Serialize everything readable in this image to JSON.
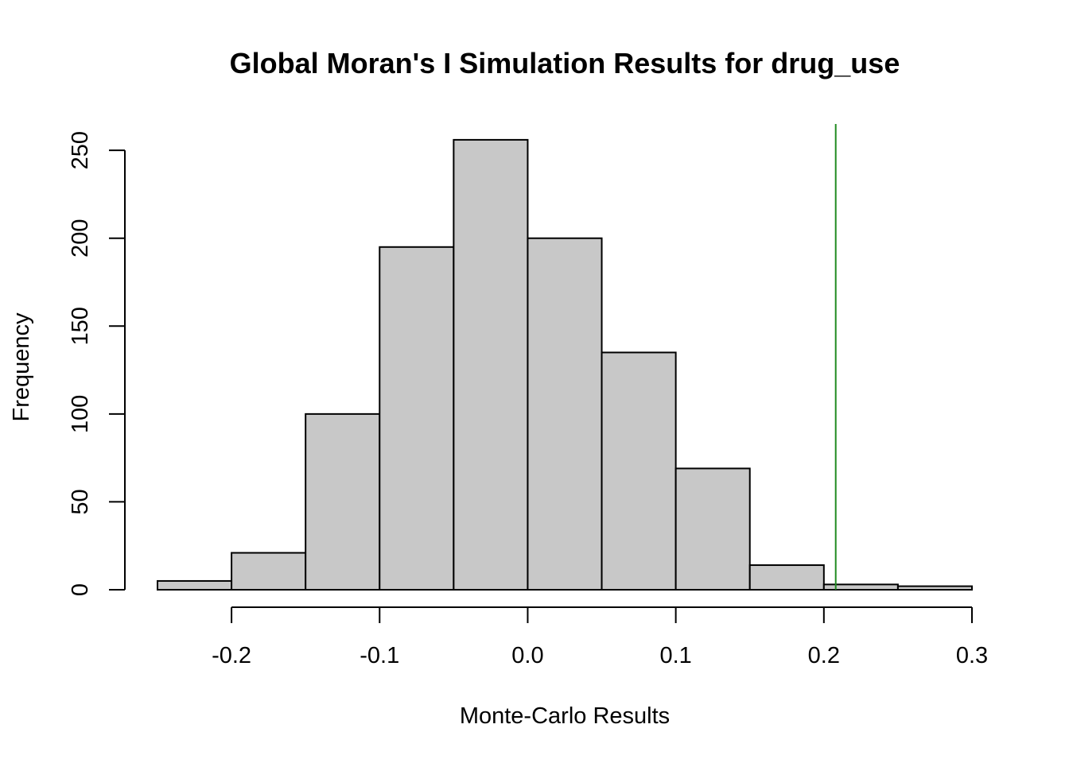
{
  "chart_data": {
    "type": "bar",
    "subtype": "histogram",
    "title": "Global Moran's I Simulation Results for drug_use",
    "xlabel": "Monte-Carlo Results",
    "ylabel": "Frequency",
    "bins": [
      {
        "x0": -0.25,
        "x1": -0.2,
        "count": 5
      },
      {
        "x0": -0.2,
        "x1": -0.15,
        "count": 21
      },
      {
        "x0": -0.15,
        "x1": -0.1,
        "count": 100
      },
      {
        "x0": -0.1,
        "x1": -0.05,
        "count": 195
      },
      {
        "x0": -0.05,
        "x1": 0.0,
        "count": 256
      },
      {
        "x0": 0.0,
        "x1": 0.05,
        "count": 200
      },
      {
        "x0": 0.05,
        "x1": 0.1,
        "count": 135
      },
      {
        "x0": 0.1,
        "x1": 0.15,
        "count": 69
      },
      {
        "x0": 0.15,
        "x1": 0.2,
        "count": 14
      },
      {
        "x0": 0.2,
        "x1": 0.25,
        "count": 3
      },
      {
        "x0": 0.25,
        "x1": 0.3,
        "count": 2
      }
    ],
    "xlim": [
      -0.25,
      0.3
    ],
    "ylim": [
      0,
      265
    ],
    "x_ticks": [
      -0.2,
      -0.1,
      0.0,
      0.1,
      0.2,
      0.3
    ],
    "x_tick_labels": [
      "-0.2",
      "-0.1",
      "0.0",
      "0.1",
      "0.2",
      "0.3"
    ],
    "y_ticks": [
      0,
      50,
      100,
      150,
      200,
      250
    ],
    "y_tick_labels": [
      "0",
      "50",
      "100",
      "150",
      "200",
      "250"
    ],
    "reference_line": {
      "x": 0.208
    },
    "grid": false,
    "legend": "none",
    "colors": {
      "bar_fill": "#c8c8c8",
      "bar_stroke": "#000000",
      "reference_line": "#228b22"
    }
  }
}
